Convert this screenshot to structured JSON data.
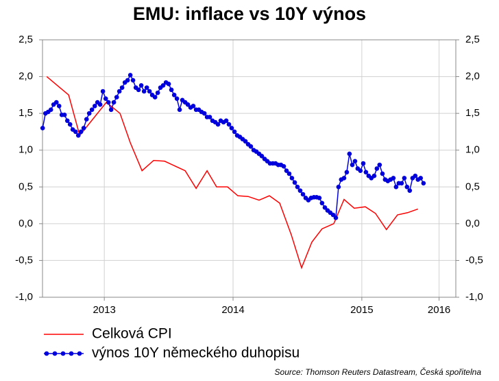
{
  "chart_data": {
    "type": "line",
    "title": "EMU: inflace vs 10Y výnos",
    "source": "Source: Thomson Reuters Datastream, Česká spořitelna",
    "xlim": [
      2013.02,
      2016.23
    ],
    "xticks": [
      {
        "value": 2013.5,
        "label": "2013"
      },
      {
        "value": 2014.5,
        "label": "2014"
      },
      {
        "value": 2015.5,
        "label": "2015"
      },
      {
        "value": 2016.1,
        "label": "2016"
      }
    ],
    "ylim": [
      -1,
      2.5
    ],
    "yticks": [
      {
        "value": -1,
        "label": "-1,0"
      },
      {
        "value": -0.5,
        "label": "-0,5"
      },
      {
        "value": 0,
        "label": "0,0"
      },
      {
        "value": 0.5,
        "label": "0,5"
      },
      {
        "value": 1,
        "label": "1,0"
      },
      {
        "value": 1.5,
        "label": "1,5"
      },
      {
        "value": 2,
        "label": "2,0"
      },
      {
        "value": 2.5,
        "label": "2,5"
      }
    ],
    "y2lim": [
      -1,
      2.5
    ],
    "y2ticks": [
      {
        "value": -1,
        "label": "-1,0"
      },
      {
        "value": -0.5,
        "label": "-0,5"
      },
      {
        "value": 0,
        "label": "0,0"
      },
      {
        "value": 0.5,
        "label": "0,5"
      },
      {
        "value": 1,
        "label": "1,0"
      },
      {
        "value": 1.5,
        "label": "1,5"
      },
      {
        "value": 2,
        "label": "2,0"
      },
      {
        "value": 2.5,
        "label": "2,5"
      }
    ],
    "grid": true,
    "series": [
      {
        "name": "Celková CPI",
        "color": "#ff0000",
        "marker": "none",
        "x": [
          2013.053,
          2013.223,
          2013.309,
          2013.516,
          2013.622,
          2013.702,
          2013.793,
          2013.883,
          2013.968,
          2014.128,
          2014.213,
          2014.298,
          2014.372,
          2014.457,
          2014.537,
          2014.617,
          2014.702,
          2014.782,
          2014.862,
          2014.952,
          2015.032,
          2015.112,
          2015.191,
          2015.282,
          2015.362,
          2015.441,
          2015.527,
          2015.606,
          2015.691,
          2015.777,
          2015.856,
          2015.936
        ],
        "values": [
          2.0,
          1.75,
          1.2,
          1.65,
          1.5,
          1.1,
          0.72,
          0.86,
          0.85,
          0.72,
          0.48,
          0.72,
          0.5,
          0.5,
          0.38,
          0.37,
          0.32,
          0.38,
          0.28,
          -0.15,
          -0.6,
          -0.25,
          -0.07,
          0.0,
          0.33,
          0.21,
          0.23,
          0.14,
          -0.08,
          0.12,
          0.15,
          0.2
        ]
      },
      {
        "name": "výnos 10Y německého duhopisu",
        "color": "#0000dd",
        "marker": "circle",
        "x": [
          2013.021,
          2013.043,
          2013.064,
          2013.085,
          2013.106,
          2013.128,
          2013.149,
          2013.17,
          2013.191,
          2013.213,
          2013.234,
          2013.255,
          2013.277,
          2013.298,
          2013.319,
          2013.34,
          2013.362,
          2013.383,
          2013.404,
          2013.426,
          2013.447,
          2013.468,
          2013.489,
          2013.511,
          2013.532,
          2013.553,
          2013.574,
          2013.596,
          2013.617,
          2013.638,
          2013.66,
          2013.681,
          2013.702,
          2013.723,
          2013.745,
          2013.766,
          2013.787,
          2013.809,
          2013.83,
          2013.851,
          2013.872,
          2013.894,
          2013.915,
          2013.936,
          2013.957,
          2013.979,
          2014.0,
          2014.021,
          2014.043,
          2014.064,
          2014.085,
          2014.106,
          2014.128,
          2014.149,
          2014.17,
          2014.191,
          2014.213,
          2014.234,
          2014.255,
          2014.277,
          2014.298,
          2014.319,
          2014.34,
          2014.362,
          2014.383,
          2014.404,
          2014.426,
          2014.447,
          2014.468,
          2014.489,
          2014.511,
          2014.532,
          2014.553,
          2014.574,
          2014.596,
          2014.617,
          2014.638,
          2014.66,
          2014.681,
          2014.702,
          2014.723,
          2014.745,
          2014.766,
          2014.787,
          2014.809,
          2014.83,
          2014.851,
          2014.872,
          2014.894,
          2014.915,
          2014.936,
          2014.957,
          2014.979,
          2015.0,
          2015.021,
          2015.043,
          2015.064,
          2015.085,
          2015.106,
          2015.128,
          2015.149,
          2015.17,
          2015.191,
          2015.213,
          2015.234,
          2015.255,
          2015.277,
          2015.298,
          2015.319,
          2015.34,
          2015.362,
          2015.383,
          2015.404,
          2015.426,
          2015.447,
          2015.468,
          2015.489,
          2015.511,
          2015.532,
          2015.553,
          2015.574,
          2015.596,
          2015.617,
          2015.638,
          2015.66,
          2015.681,
          2015.702,
          2015.723,
          2015.745,
          2015.766,
          2015.787,
          2015.809,
          2015.83,
          2015.851,
          2015.872,
          2015.894,
          2015.915,
          2015.936,
          2015.957,
          2015.979
        ],
        "values": [
          1.3,
          1.5,
          1.52,
          1.55,
          1.62,
          1.65,
          1.6,
          1.48,
          1.48,
          1.4,
          1.35,
          1.28,
          1.25,
          1.2,
          1.25,
          1.3,
          1.42,
          1.5,
          1.55,
          1.6,
          1.65,
          1.62,
          1.8,
          1.7,
          1.65,
          1.55,
          1.65,
          1.72,
          1.8,
          1.85,
          1.92,
          1.95,
          2.02,
          1.95,
          1.85,
          1.82,
          1.88,
          1.8,
          1.85,
          1.8,
          1.75,
          1.72,
          1.78,
          1.85,
          1.88,
          1.92,
          1.9,
          1.82,
          1.75,
          1.7,
          1.55,
          1.68,
          1.65,
          1.62,
          1.58,
          1.6,
          1.55,
          1.55,
          1.52,
          1.5,
          1.45,
          1.45,
          1.4,
          1.38,
          1.35,
          1.4,
          1.38,
          1.4,
          1.35,
          1.3,
          1.25,
          1.2,
          1.18,
          1.15,
          1.12,
          1.08,
          1.05,
          1.0,
          0.98,
          0.95,
          0.92,
          0.88,
          0.85,
          0.82,
          0.82,
          0.82,
          0.8,
          0.8,
          0.78,
          0.72,
          0.68,
          0.62,
          0.56,
          0.5,
          0.45,
          0.4,
          0.35,
          0.32,
          0.35,
          0.36,
          0.36,
          0.35,
          0.28,
          0.22,
          0.18,
          0.15,
          0.12,
          0.08,
          0.5,
          0.6,
          0.62,
          0.7,
          0.95,
          0.8,
          0.85,
          0.75,
          0.72,
          0.82,
          0.7,
          0.65,
          0.62,
          0.65,
          0.75,
          0.8,
          0.68,
          0.6,
          0.58,
          0.6,
          0.62,
          0.5,
          0.55,
          0.55,
          0.62,
          0.5,
          0.45,
          0.62,
          0.65,
          0.6,
          0.62,
          0.55
        ]
      }
    ]
  }
}
